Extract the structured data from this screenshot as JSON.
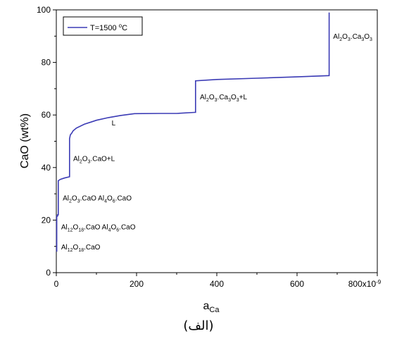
{
  "chart_data": {
    "type": "line",
    "xlabel": "a",
    "xlabel_sub": "Ca",
    "ylabel": "CaO (wt%)",
    "xlim": [
      0,
      800
    ],
    "ylim": [
      0,
      100
    ],
    "x_tick_values": [
      0,
      200,
      400,
      600,
      800
    ],
    "x_tick_labels": [
      "0",
      "200",
      "400",
      "600",
      "800x10"
    ],
    "x_scale_exponent": "-9",
    "y_tick_values": [
      0,
      20,
      40,
      60,
      80,
      100
    ],
    "y_tick_labels": [
      "0",
      "20",
      "40",
      "60",
      "80",
      "100"
    ],
    "grid": false,
    "legend_position": "top-left",
    "series": [
      {
        "name": "T=1500 °C",
        "color": "#3b3bb5",
        "x": [
          1,
          1,
          3,
          3,
          5,
          5,
          10,
          20,
          33,
          33,
          35,
          38,
          42,
          50,
          70,
          100,
          130,
          160,
          195,
          260,
          300,
          345,
          347,
          347,
          400,
          500,
          600,
          680,
          680
        ],
        "y": [
          8,
          21.5,
          21.5,
          22,
          22,
          35,
          35.5,
          36,
          36.5,
          51,
          52.5,
          53,
          54,
          55,
          56.5,
          58,
          59,
          59.8,
          60.5,
          60.6,
          60.6,
          61,
          61,
          73,
          73.5,
          74,
          74.5,
          75,
          99
        ]
      }
    ],
    "legend_text": "T=1500 ",
    "legend_superscript": "o",
    "legend_unit": "C",
    "annotations": [
      {
        "text": "Al2O3.Ca3O3",
        "x": 690,
        "y": 89,
        "parts": [
          [
            "Al",
            ""
          ],
          [
            "2",
            "sub"
          ],
          [
            "O",
            ""
          ],
          [
            "3",
            "sub"
          ],
          [
            ".Ca",
            ""
          ],
          [
            "3",
            "sub"
          ],
          [
            "O",
            ""
          ],
          [
            "3",
            "sub"
          ]
        ]
      },
      {
        "text": "Al2O3.Ca3O3+L",
        "x": 358,
        "y": 66,
        "parts": [
          [
            "Al",
            ""
          ],
          [
            "2",
            "sub"
          ],
          [
            "O",
            ""
          ],
          [
            "3",
            "sub"
          ],
          [
            ".Ca",
            ""
          ],
          [
            "3",
            "sub"
          ],
          [
            "O",
            ""
          ],
          [
            "3",
            "sub"
          ],
          [
            "+L",
            ""
          ]
        ]
      },
      {
        "text": "L",
        "x": 138,
        "y": 56,
        "parts": [
          [
            "L",
            ""
          ]
        ]
      },
      {
        "text": "Al2O3.CaO+L",
        "x": 42,
        "y": 42.5,
        "parts": [
          [
            "Al",
            ""
          ],
          [
            "2",
            "sub"
          ],
          [
            "O",
            ""
          ],
          [
            "3",
            "sub"
          ],
          [
            ".CaO+L",
            ""
          ]
        ]
      },
      {
        "text": "Al2O3.CaO Al4O6.CaO",
        "x": 16,
        "y": 27.5,
        "parts": [
          [
            "Al",
            ""
          ],
          [
            "2",
            "sub"
          ],
          [
            "O",
            ""
          ],
          [
            "3",
            "sub"
          ],
          [
            ".CaO Al",
            ""
          ],
          [
            "4",
            "sub"
          ],
          [
            "O",
            ""
          ],
          [
            "6",
            "sub"
          ],
          [
            ".CaO",
            ""
          ]
        ]
      },
      {
        "text": "Al12O18.CaO Al4O6.CaO",
        "x": 12,
        "y": 16.5,
        "parts": [
          [
            "Al",
            ""
          ],
          [
            "12",
            "sub"
          ],
          [
            "O",
            ""
          ],
          [
            "18",
            "sub"
          ],
          [
            ".CaO Al",
            ""
          ],
          [
            "4",
            "sub"
          ],
          [
            "O",
            ""
          ],
          [
            "6",
            "sub"
          ],
          [
            ".CaO",
            ""
          ]
        ]
      },
      {
        "text": "Al12O18.CaO",
        "x": 12,
        "y": 8.8,
        "parts": [
          [
            "Al",
            ""
          ],
          [
            "12",
            "sub"
          ],
          [
            "O",
            ""
          ],
          [
            "18",
            "sub"
          ],
          [
            ".CaO",
            ""
          ]
        ]
      }
    ]
  },
  "caption": "(الف)"
}
